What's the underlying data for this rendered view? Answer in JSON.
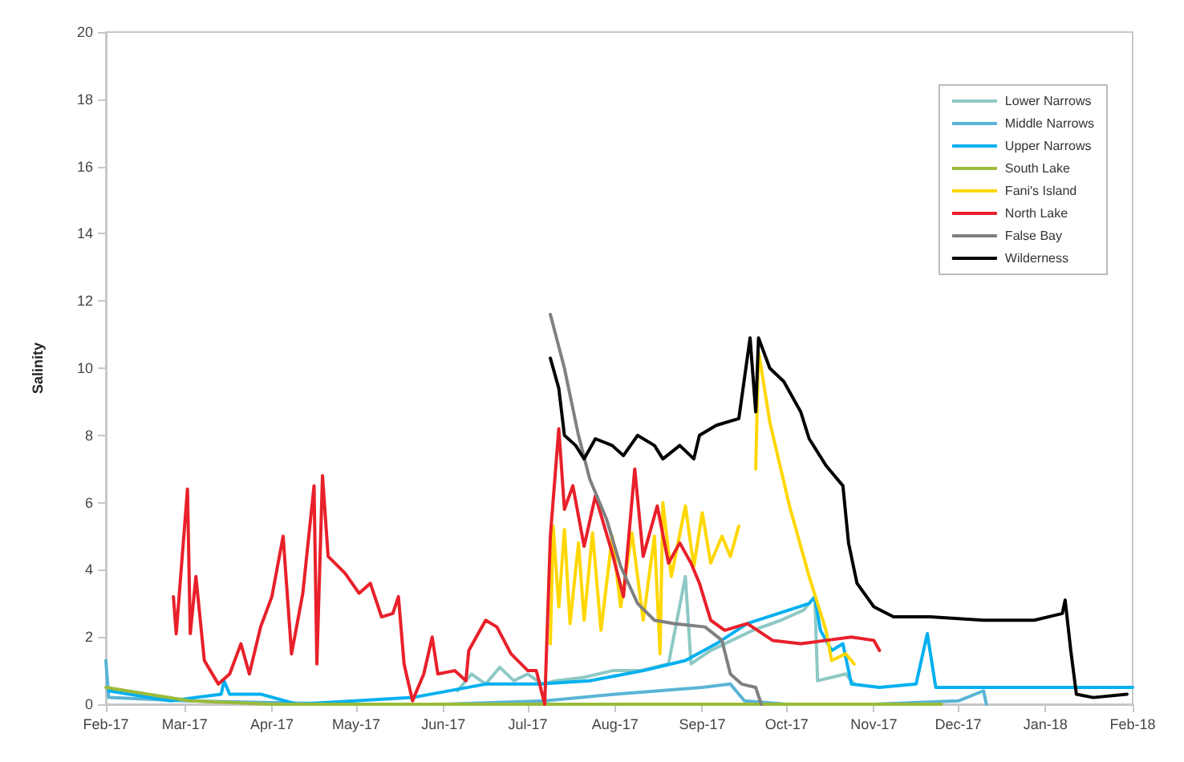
{
  "chart_data": {
    "type": "line",
    "ylabel": "Salinity",
    "xlim": [
      "2017-02-01",
      "2018-02-01"
    ],
    "ylim": [
      0,
      20
    ],
    "yticks": [
      0,
      2,
      4,
      6,
      8,
      10,
      12,
      14,
      16,
      18,
      20
    ],
    "xticks": [
      {
        "value": "2017-02-01",
        "label": "Feb-17"
      },
      {
        "value": "2017-03-01",
        "label": "Mar-17"
      },
      {
        "value": "2017-04-01",
        "label": "Apr-17"
      },
      {
        "value": "2017-05-01",
        "label": "May-17"
      },
      {
        "value": "2017-06-01",
        "label": "Jun-17"
      },
      {
        "value": "2017-07-01",
        "label": "Jul-17"
      },
      {
        "value": "2017-08-01",
        "label": "Aug-17"
      },
      {
        "value": "2017-09-01",
        "label": "Sep-17"
      },
      {
        "value": "2017-10-01",
        "label": "Oct-17"
      },
      {
        "value": "2017-11-01",
        "label": "Nov-17"
      },
      {
        "value": "2017-12-01",
        "label": "Dec-17"
      },
      {
        "value": "2018-01-01",
        "label": "Jan-18"
      },
      {
        "value": "2018-02-01",
        "label": "Feb-18"
      }
    ],
    "grid": false,
    "legend": "top right",
    "marker": "none",
    "line_style": "solid",
    "series": [
      {
        "name": "Lower Narrows",
        "color": "#8ec8c4",
        "x": [
          "2017-06-06",
          "2017-06-11",
          "2017-06-16",
          "2017-06-21",
          "2017-06-26",
          "2017-07-01",
          "2017-07-06",
          "2017-07-11",
          "2017-07-21",
          "2017-07-31",
          "2017-08-10",
          "2017-08-20",
          "2017-08-26",
          "2017-08-28",
          "2017-09-04",
          "2017-09-09",
          "2017-09-19",
          "2017-09-29",
          "2017-10-07",
          "2017-10-11",
          "2017-10-12",
          "2017-10-17",
          "2017-10-22",
          "2017-10-25"
        ],
        "values": [
          0.4,
          0.9,
          0.6,
          1.1,
          0.7,
          0.9,
          0.6,
          0.7,
          0.8,
          1.0,
          1.0,
          1.2,
          3.8,
          1.2,
          1.6,
          1.8,
          2.2,
          2.5,
          2.8,
          3.2,
          0.7,
          0.8,
          0.9,
          0.6
        ]
      },
      {
        "name": "Middle Narrows",
        "color": "#5ab4d6",
        "x": [
          "2017-02-01",
          "2017-02-02",
          "2017-03-01",
          "2017-05-01",
          "2017-06-01",
          "2017-07-07",
          "2017-08-01",
          "2017-09-01",
          "2017-09-11",
          "2017-09-16",
          "2017-10-01",
          "2017-11-01",
          "2017-12-01",
          "2017-12-10",
          "2017-12-11"
        ],
        "values": [
          1.3,
          0.2,
          0.1,
          0.0,
          0.0,
          0.1,
          0.3,
          0.5,
          0.6,
          0.1,
          0.0,
          0.0,
          0.1,
          0.4,
          0.0
        ]
      },
      {
        "name": "Upper Narrows",
        "color": "#00b0f0",
        "x": [
          "2017-02-02",
          "2017-02-24",
          "2017-03-14",
          "2017-03-15",
          "2017-03-17",
          "2017-03-28",
          "2017-04-10",
          "2017-05-21",
          "2017-06-16",
          "2017-07-05",
          "2017-07-23",
          "2017-08-11",
          "2017-08-26",
          "2017-09-06",
          "2017-09-17",
          "2017-09-28",
          "2017-10-09",
          "2017-10-11",
          "2017-10-13",
          "2017-10-17",
          "2017-10-21",
          "2017-10-24",
          "2017-11-03",
          "2017-11-16",
          "2017-11-20",
          "2017-11-23",
          "2018-02-01"
        ],
        "values": [
          0.4,
          0.1,
          0.3,
          0.7,
          0.3,
          0.3,
          0.0,
          0.2,
          0.6,
          0.6,
          0.7,
          1.0,
          1.3,
          1.8,
          2.4,
          2.7,
          3.0,
          3.2,
          2.2,
          1.6,
          1.8,
          0.6,
          0.5,
          0.6,
          2.1,
          0.5,
          0.5
        ]
      },
      {
        "name": "South Lake",
        "color": "#9bbb3a",
        "x": [
          "2017-02-01",
          "2017-02-16",
          "2017-03-03",
          "2017-04-01",
          "2017-07-01",
          "2017-10-01",
          "2017-11-25"
        ],
        "values": [
          0.5,
          0.3,
          0.1,
          0.0,
          0.0,
          0.0,
          0.0
        ]
      },
      {
        "name": "Fani's Island",
        "color": "#ffd700",
        "x": [
          "2017-07-09",
          "2017-07-10",
          "2017-07-12",
          "2017-07-14",
          "2017-07-16",
          "2017-07-19",
          "2017-07-21",
          "2017-07-24",
          "2017-07-27",
          "2017-07-31",
          "2017-08-03",
          "2017-08-07",
          "2017-08-11",
          "2017-08-15",
          "2017-08-17",
          "2017-08-18",
          "2017-08-21",
          "2017-08-26",
          "2017-08-29",
          "2017-09-01",
          "2017-09-04",
          "2017-09-08",
          "2017-09-11",
          "2017-09-14",
          "2017-09-17",
          "2017-09-20",
          "2017-09-21",
          "2017-09-25",
          "2017-10-02",
          "2017-10-09",
          "2017-10-15",
          "2017-10-17",
          "2017-10-22",
          "2017-10-25"
        ],
        "values": [
          1.8,
          5.3,
          2.9,
          5.2,
          2.4,
          4.8,
          2.5,
          5.1,
          2.2,
          5.0,
          2.9,
          5.1,
          2.5,
          5.0,
          1.5,
          6.0,
          3.8,
          5.9,
          4.1,
          5.7,
          4.2,
          5.0,
          4.4,
          5.3,
          null,
          7.0,
          10.5,
          8.4,
          5.9,
          3.8,
          2.2,
          1.3,
          1.5,
          1.2
        ]
      },
      {
        "name": "North Lake",
        "color": "#e8202a",
        "x": [
          "2017-02-25",
          "2017-02-26",
          "2017-03-02",
          "2017-03-03",
          "2017-03-05",
          "2017-03-08",
          "2017-03-13",
          "2017-03-17",
          "2017-03-21",
          "2017-03-24",
          "2017-03-28",
          "2017-04-01",
          "2017-04-05",
          "2017-04-08",
          "2017-04-12",
          "2017-04-16",
          "2017-04-17",
          "2017-04-19",
          "2017-04-21",
          "2017-04-27",
          "2017-05-02",
          "2017-05-06",
          "2017-05-10",
          "2017-05-14",
          "2017-05-16",
          "2017-05-18",
          "2017-05-21",
          "2017-05-25",
          "2017-05-28",
          "2017-05-30",
          "2017-06-05",
          "2017-06-09",
          "2017-06-10",
          "2017-06-16",
          "2017-06-20",
          "2017-06-25",
          "2017-07-01",
          "2017-07-04",
          "2017-07-07",
          "2017-07-09",
          "2017-07-12",
          "2017-07-14",
          "2017-07-17",
          "2017-07-21",
          "2017-07-25",
          "2017-07-31",
          "2017-08-04",
          "2017-08-08",
          "2017-08-11",
          "2017-08-16",
          "2017-08-20",
          "2017-08-24",
          "2017-08-28",
          "2017-08-31",
          "2017-09-04",
          "2017-09-09",
          "2017-09-17",
          "2017-09-26",
          "2017-10-06",
          "2017-10-15",
          "2017-10-24",
          "2017-11-01",
          "2017-11-03"
        ],
        "values": [
          3.2,
          2.1,
          6.4,
          2.1,
          3.8,
          1.3,
          0.6,
          0.9,
          1.8,
          0.9,
          2.3,
          3.2,
          5.0,
          1.5,
          3.3,
          6.5,
          1.2,
          6.8,
          4.4,
          3.9,
          3.3,
          3.6,
          2.6,
          2.7,
          3.2,
          1.2,
          0.1,
          0.9,
          2.0,
          0.9,
          1.0,
          0.7,
          1.6,
          2.5,
          2.3,
          1.5,
          1.0,
          1.0,
          0.0,
          5.0,
          8.2,
          5.8,
          6.5,
          4.7,
          6.2,
          4.5,
          3.2,
          7.0,
          4.4,
          5.9,
          4.2,
          4.8,
          4.2,
          3.6,
          2.5,
          2.2,
          2.4,
          1.9,
          1.8,
          1.9,
          2.0,
          1.9,
          1.6
        ]
      },
      {
        "name": "False Bay",
        "color": "#808080",
        "x": [
          "2017-07-09",
          "2017-07-14",
          "2017-07-19",
          "2017-07-23",
          "2017-07-29",
          "2017-08-03",
          "2017-08-09",
          "2017-08-15",
          "2017-08-22",
          "2017-09-02",
          "2017-09-08",
          "2017-09-11",
          "2017-09-15",
          "2017-09-20",
          "2017-09-22"
        ],
        "values": [
          11.6,
          10.0,
          8.0,
          6.7,
          5.5,
          4.1,
          3.0,
          2.5,
          2.4,
          2.3,
          1.9,
          0.9,
          0.6,
          0.5,
          0.0
        ]
      },
      {
        "name": "Wilderness",
        "color": "#000000",
        "x": [
          "2017-07-09",
          "2017-07-12",
          "2017-07-14",
          "2017-07-18",
          "2017-07-21",
          "2017-07-25",
          "2017-07-31",
          "2017-08-04",
          "2017-08-09",
          "2017-08-15",
          "2017-08-18",
          "2017-08-24",
          "2017-08-29",
          "2017-08-31",
          "2017-09-06",
          "2017-09-14",
          "2017-09-18",
          "2017-09-20",
          "2017-09-21",
          "2017-09-25",
          "2017-09-30",
          "2017-10-06",
          "2017-10-09",
          "2017-10-15",
          "2017-10-21",
          "2017-10-23",
          "2017-10-26",
          "2017-11-01",
          "2017-11-08",
          "2017-11-21",
          "2017-12-10",
          "2017-12-28",
          "2018-01-07",
          "2018-01-08",
          "2018-01-10",
          "2018-01-12",
          "2018-01-18",
          "2018-01-30"
        ],
        "values": [
          10.3,
          9.4,
          8.0,
          7.7,
          7.3,
          7.9,
          7.7,
          7.4,
          8.0,
          7.7,
          7.3,
          7.7,
          7.3,
          8.0,
          8.3,
          8.5,
          10.9,
          8.7,
          10.9,
          10.0,
          9.6,
          8.7,
          7.9,
          7.1,
          6.5,
          4.8,
          3.6,
          2.9,
          2.6,
          2.6,
          2.5,
          2.5,
          2.7,
          3.1,
          1.6,
          0.3,
          0.2,
          0.3
        ]
      }
    ]
  }
}
